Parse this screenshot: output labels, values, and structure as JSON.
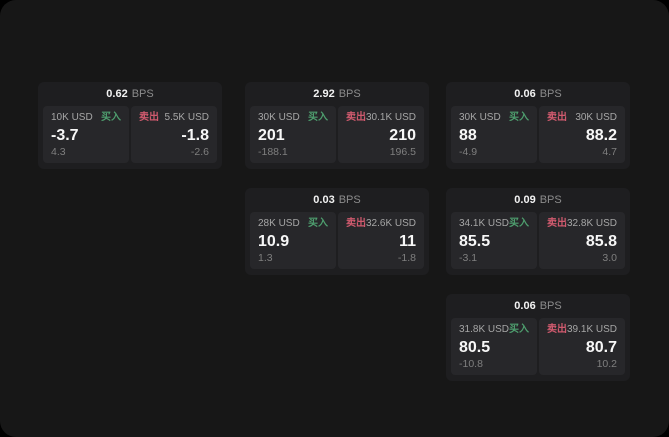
{
  "labels": {
    "bps_suffix": "BPS",
    "buy": "买入",
    "sell": "卖出"
  },
  "colors": {
    "page_bg": "#000000",
    "panel_bg": "#171717",
    "card_bg": "#1e1e20",
    "tile_bg": "#27272a",
    "buy_green": "#4e9e6e",
    "sell_red": "#d05a6e",
    "text_primary": "#f7f7f7",
    "text_secondary": "#a6a6a6",
    "text_muted": "#7f7f7f"
  },
  "cards": [
    {
      "col": 1,
      "row": 1,
      "bps": "0.62",
      "buy": {
        "amount": "10K USD",
        "value": "-3.7",
        "sub": "4.3"
      },
      "sell": {
        "amount": "5.5K USD",
        "value": "-1.8",
        "sub": "-2.6"
      }
    },
    {
      "col": 2,
      "row": 1,
      "bps": "2.92",
      "buy": {
        "amount": "30K USD",
        "value": "201",
        "sub": "-188.1"
      },
      "sell": {
        "amount": "30.1K USD",
        "value": "210",
        "sub": "196.5"
      }
    },
    {
      "col": 3,
      "row": 1,
      "bps": "0.06",
      "buy": {
        "amount": "30K USD",
        "value": "88",
        "sub": "-4.9"
      },
      "sell": {
        "amount": "30K USD",
        "value": "88.2",
        "sub": "4.7"
      }
    },
    {
      "col": 2,
      "row": 2,
      "bps": "0.03",
      "buy": {
        "amount": "28K USD",
        "value": "10.9",
        "sub": "1.3"
      },
      "sell": {
        "amount": "32.6K USD",
        "value": "11",
        "sub": "-1.8"
      }
    },
    {
      "col": 3,
      "row": 2,
      "bps": "0.09",
      "buy": {
        "amount": "34.1K USD",
        "value": "85.5",
        "sub": "-3.1"
      },
      "sell": {
        "amount": "32.8K USD",
        "value": "85.8",
        "sub": "3.0"
      }
    },
    {
      "col": 3,
      "row": 3,
      "bps": "0.06",
      "buy": {
        "amount": "31.8K USD",
        "value": "80.5",
        "sub": "-10.8"
      },
      "sell": {
        "amount": "39.1K USD",
        "value": "80.7",
        "sub": "10.2"
      }
    }
  ]
}
